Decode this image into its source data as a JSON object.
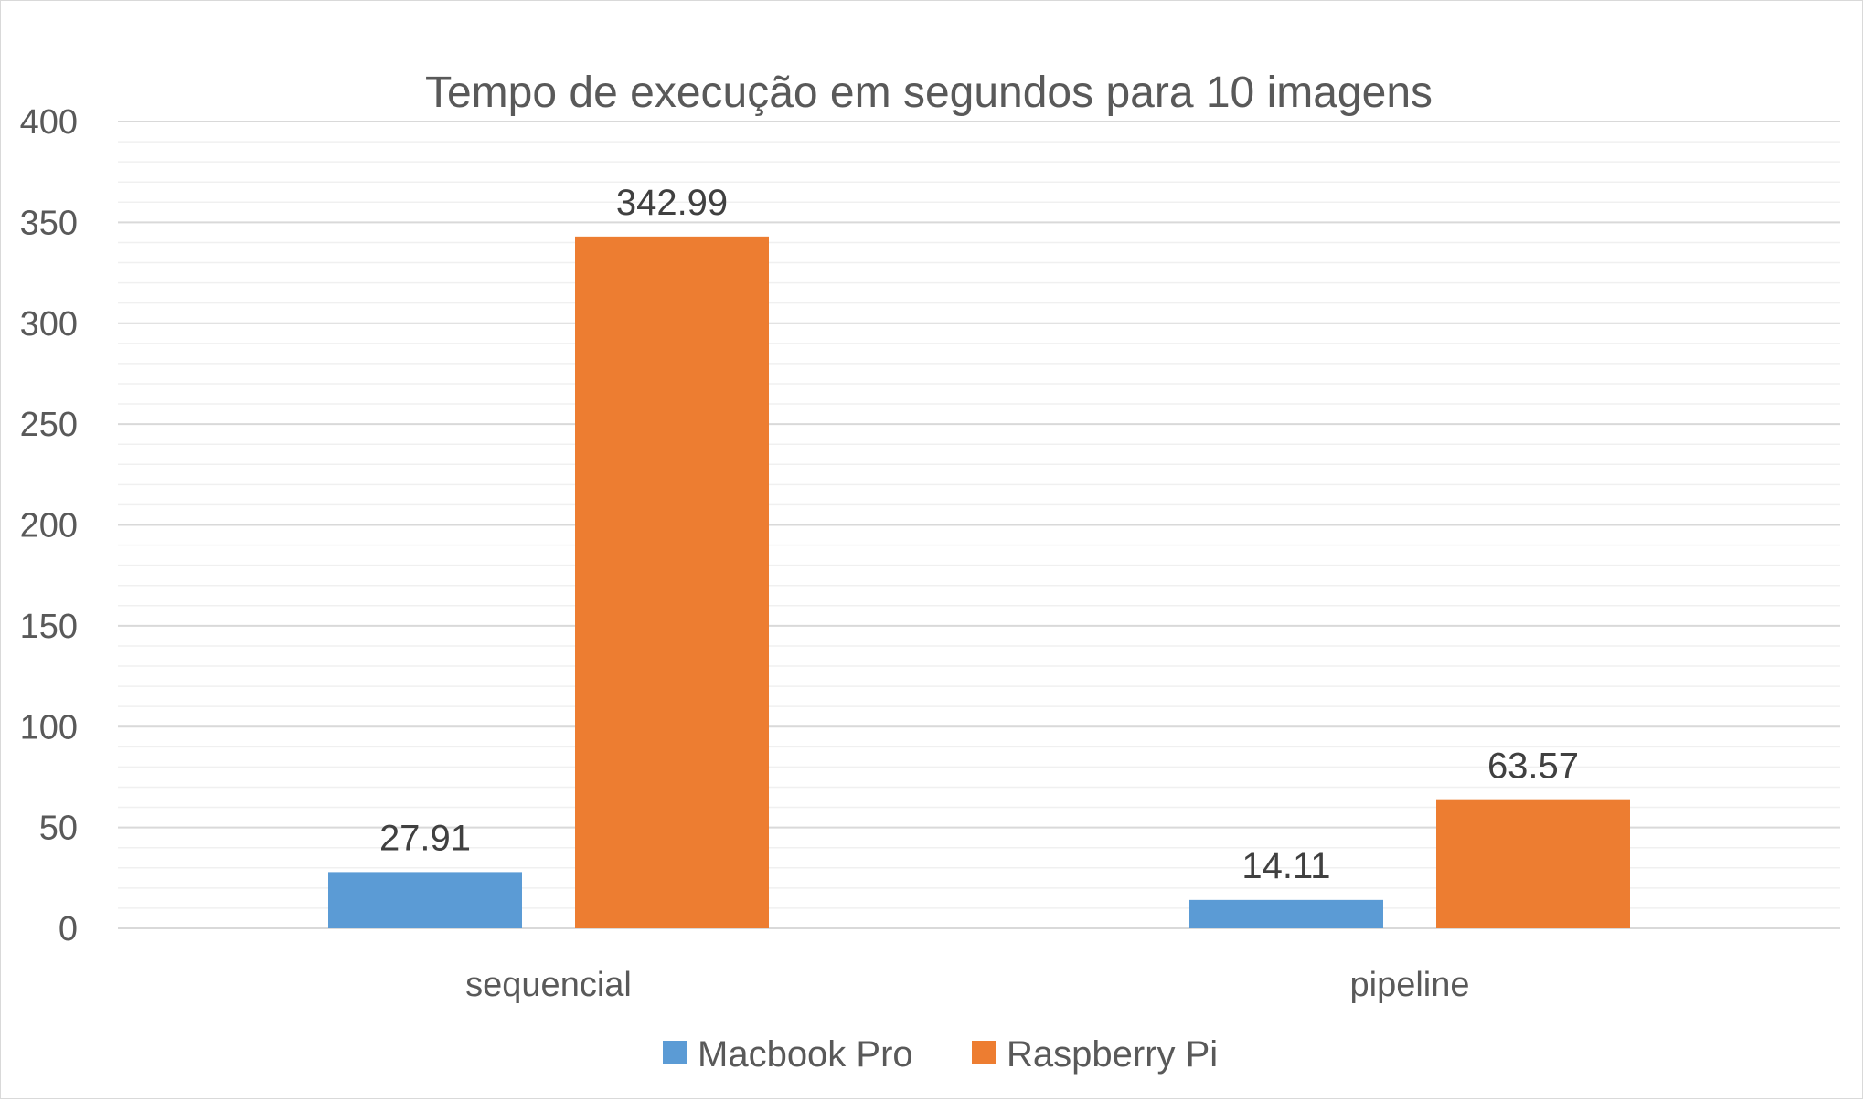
{
  "chart_data": {
    "type": "bar",
    "title": "Tempo de execução em segundos para 10 imagens",
    "categories": [
      "sequencial",
      "pipeline"
    ],
    "series": [
      {
        "name": "Macbook Pro",
        "values": [
          27.91,
          14.11
        ],
        "color": "#5b9bd5"
      },
      {
        "name": "Raspberry Pi",
        "values": [
          342.99,
          63.57
        ],
        "color": "#ed7d31"
      }
    ],
    "ylim": [
      0,
      400
    ],
    "yticks": [
      0,
      50,
      100,
      150,
      200,
      250,
      300,
      350,
      400
    ],
    "data_labels": [
      [
        "27.91",
        "14.11"
      ],
      [
        "342.99",
        "63.57"
      ]
    ],
    "grid": true,
    "minor_grid": true,
    "legend_position": "bottom"
  }
}
